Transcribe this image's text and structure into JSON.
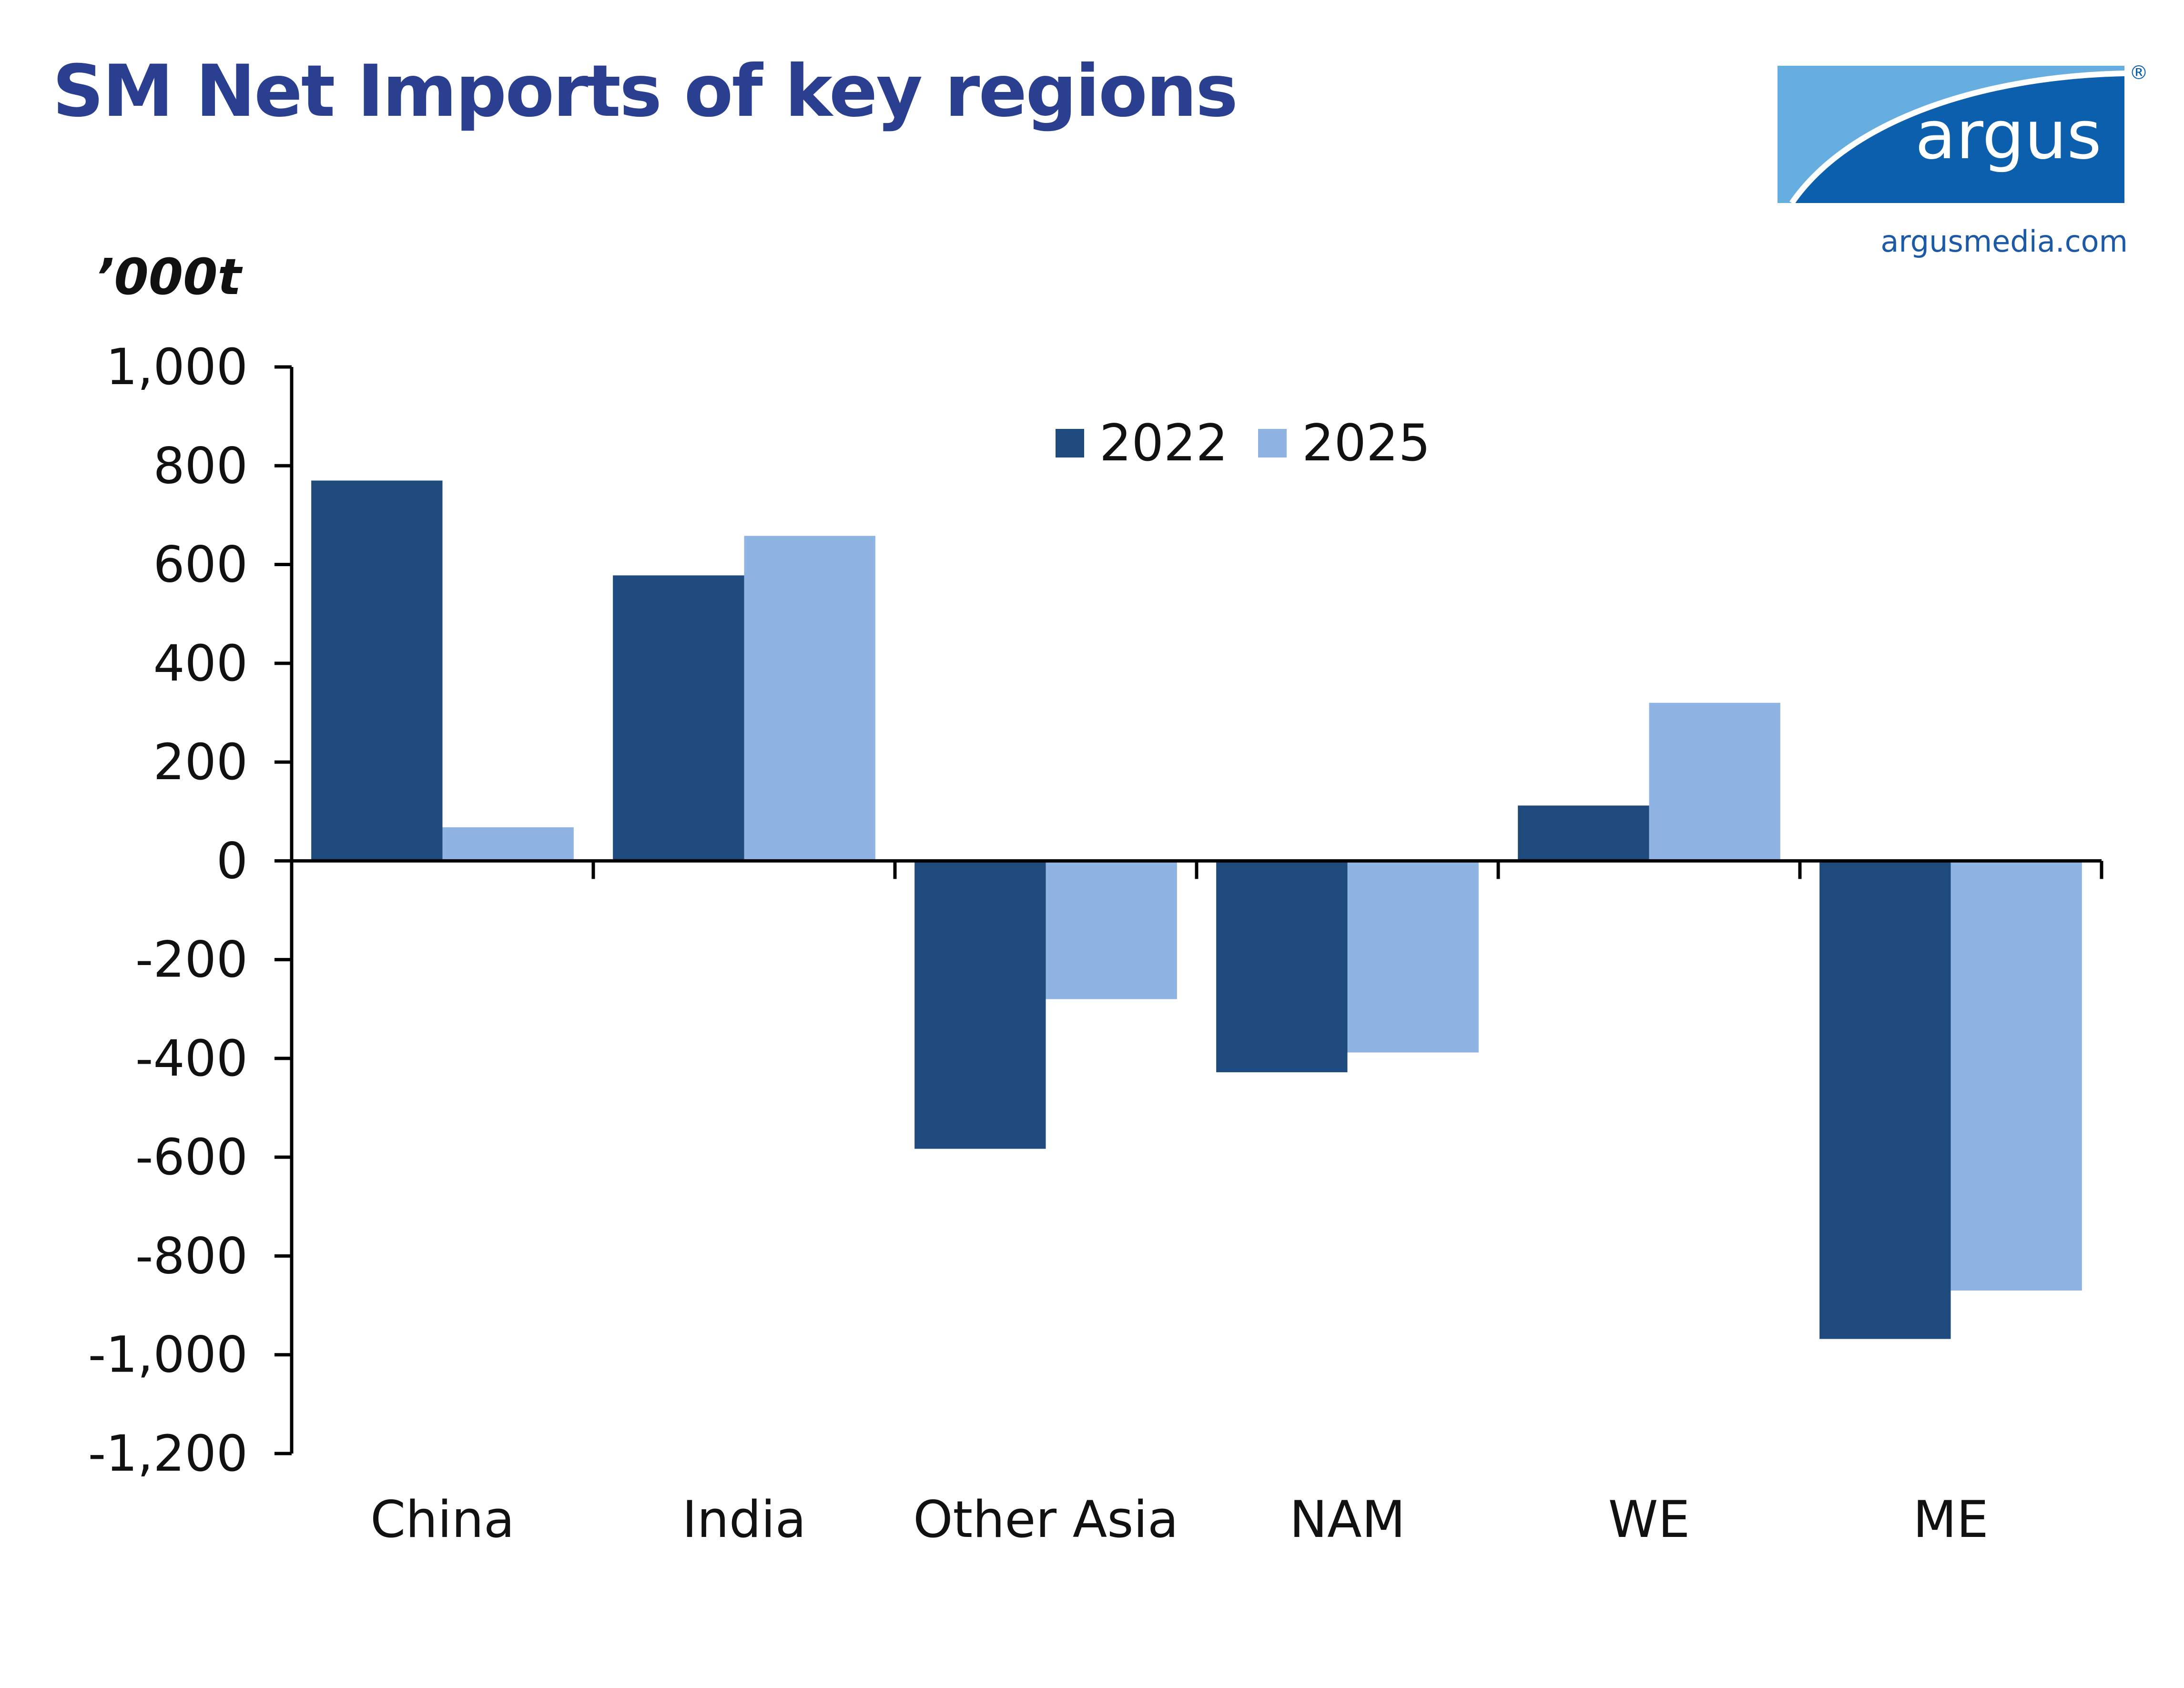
{
  "header": {
    "title": "SM Net Imports of key regions",
    "logo_text": "argus",
    "logo_registered": "®",
    "logo_url": "argusmedia.com"
  },
  "colors": {
    "title": "#2a3f8f",
    "series_2022": "#1f4a7e",
    "series_2025": "#8fb4e3",
    "logo_dark": "#0b5fad",
    "logo_light": "#66aee0"
  },
  "chart_data": {
    "type": "bar",
    "title": "SM Net Imports of key regions",
    "ylabel": "’000t",
    "xlabel": "",
    "ylim": [
      -1200,
      1000
    ],
    "yticks": [
      1000,
      800,
      600,
      400,
      200,
      0,
      -200,
      -400,
      -600,
      -800,
      -1000,
      -1200
    ],
    "ytick_labels": [
      "1,000",
      "800",
      "600",
      "400",
      "200",
      "0",
      "-200",
      "-400",
      "-600",
      "-800",
      "-1,000",
      "-1,200"
    ],
    "categories": [
      "China",
      "India",
      "Other Asia",
      "NAM",
      "WE",
      "ME"
    ],
    "series": [
      {
        "name": "2022",
        "values": [
          770,
          578,
          -583,
          -428,
          112,
          -968
        ]
      },
      {
        "name": "2025",
        "values": [
          68,
          658,
          -280,
          -388,
          320,
          -870
        ]
      }
    ],
    "legend_position": "top-center",
    "grid": false
  }
}
